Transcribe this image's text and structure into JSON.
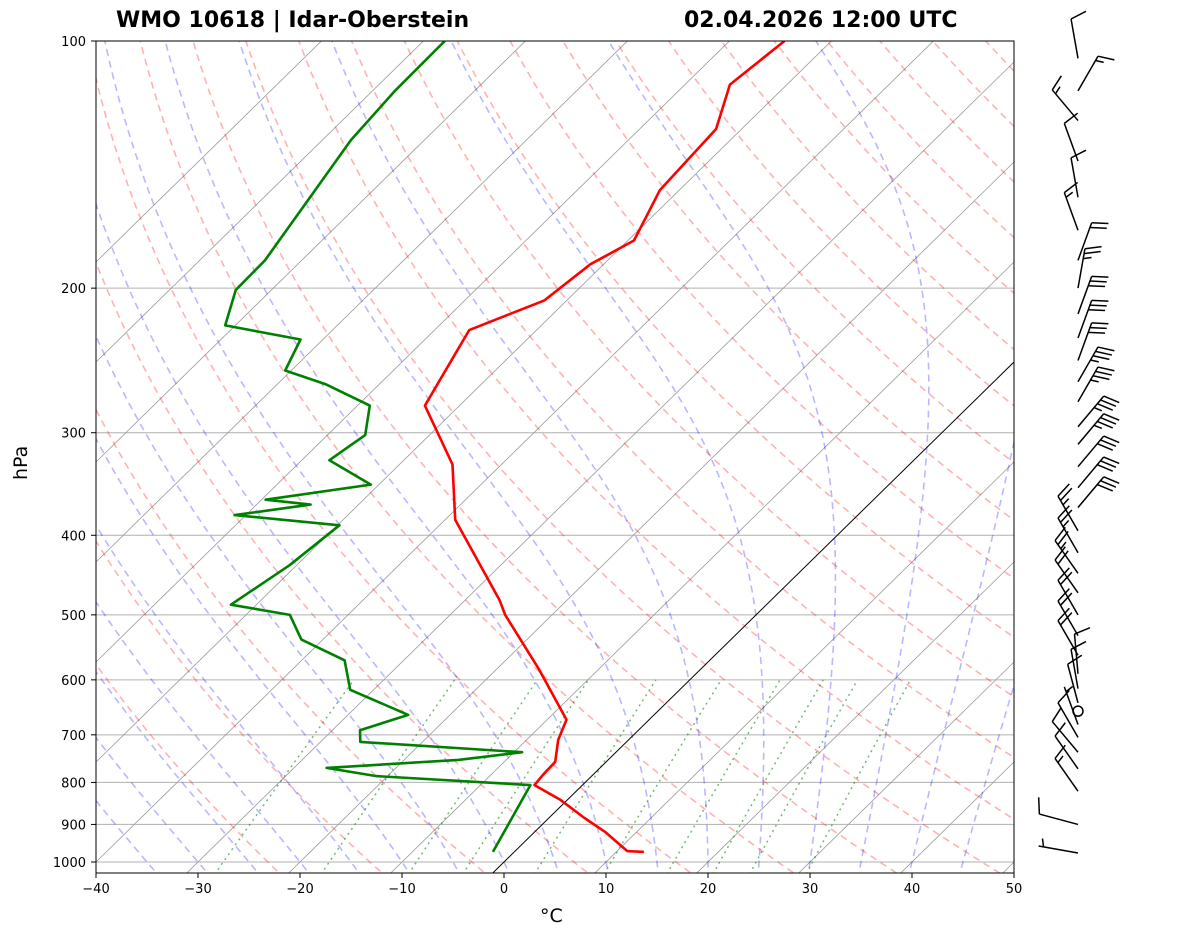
{
  "chart_data": {
    "type": "line",
    "subtype": "skew-t log-p",
    "title_left": "WMO 10618 | Idar-Oberstein",
    "title_right": "02.04.2026 12:00 UTC",
    "xlabel": "°C",
    "ylabel": "hPa",
    "xlim": [
      -40,
      50
    ],
    "ylim": [
      1031,
      100
    ],
    "xticks": [
      -40,
      -30,
      -20,
      -10,
      0,
      10,
      20,
      30,
      40,
      50
    ],
    "yticks": [
      100,
      200,
      300,
      400,
      500,
      600,
      700,
      800,
      900,
      1000
    ],
    "grid": true,
    "series": [
      {
        "name": "Temperature",
        "color": "#ff0000",
        "pressure": [
          972,
          970,
          919,
          884,
          840,
          806,
          783,
          755,
          710,
          671,
          584,
          500,
          480,
          383,
          328,
          278,
          225,
          207,
          187,
          175,
          152,
          128,
          113,
          100
        ],
        "temperature": [
          12.7,
          11.0,
          6.9,
          3.5,
          -0.7,
          -4.7,
          -4.9,
          -5.0,
          -6.9,
          -8.1,
          -15.7,
          -24.6,
          -26.6,
          -39.0,
          -44.8,
          -53.4,
          -56.6,
          -52.2,
          -51.3,
          -49.4,
          -51.9,
          -52.5,
          -55.6,
          -54.6
        ]
      },
      {
        "name": "Dewpoint",
        "color": "#008000",
        "pressure": [
          972,
          806,
          786,
          768,
          751,
          735,
          714,
          691,
          662,
          617,
          568,
          536,
          500,
          486,
          435,
          389,
          378,
          367,
          362,
          347,
          324,
          302,
          278,
          262,
          252,
          231,
          222,
          201,
          185,
          132,
          115,
          100
        ],
        "temperature": [
          -2.1,
          -5.1,
          -21.1,
          -26.8,
          -14.7,
          -9.2,
          -26.1,
          -27.3,
          -24.1,
          -32.3,
          -35.8,
          -42.1,
          -45.7,
          -52.5,
          -50.7,
          -49.8,
          -61.1,
          -54.7,
          -59.6,
          -50.8,
          -57.3,
          -56.3,
          -58.8,
          -65.2,
          -70.6,
          -72.2,
          -81.0,
          -83.5,
          -83.6,
          -87.2,
          -87.8,
          -87.9
        ]
      }
    ],
    "highlighted_isotherm_c": 0,
    "isotherms_c": [
      -100,
      -90,
      -80,
      -70,
      -60,
      -50,
      -40,
      -30,
      -20,
      -10,
      10,
      20,
      30,
      40,
      50
    ],
    "dry_adiabats_k": [
      250,
      260,
      270,
      280,
      290,
      300,
      310,
      320,
      330,
      340,
      350,
      360,
      370,
      380,
      390,
      400,
      410,
      420,
      430,
      440,
      450,
      460,
      470,
      480,
      490,
      500
    ],
    "moist_adiabats_c": [
      -35,
      -30,
      -25,
      -20,
      -15,
      -10,
      -5,
      0,
      5,
      10,
      15,
      20,
      25,
      30,
      35,
      40,
      45
    ],
    "mixing_ratio_lines_gkg": [
      0.4,
      1,
      2,
      3,
      5,
      8,
      12,
      16,
      20,
      28
    ],
    "wind_barbs": [
      {
        "p": 975,
        "dir": 280,
        "kt": 5
      },
      {
        "p": 900,
        "dir": 285,
        "kt": 10
      },
      {
        "p": 820,
        "dir": 325,
        "kt": 15
      },
      {
        "p": 770,
        "dir": 325,
        "kt": 10
      },
      {
        "p": 735,
        "dir": 320,
        "kt": 10
      },
      {
        "p": 705,
        "dir": 330,
        "kt": 10
      },
      {
        "p": 680,
        "dir": 340,
        "kt": 5
      },
      {
        "p": 655,
        "dir": 0,
        "kt": 0
      },
      {
        "p": 640,
        "dir": 345,
        "kt": 10
      },
      {
        "p": 615,
        "dir": 350,
        "kt": 10
      },
      {
        "p": 590,
        "dir": 355,
        "kt": 10
      },
      {
        "p": 560,
        "dir": 330,
        "kt": 20
      },
      {
        "p": 530,
        "dir": 330,
        "kt": 20
      },
      {
        "p": 500,
        "dir": 330,
        "kt": 20
      },
      {
        "p": 470,
        "dir": 325,
        "kt": 20
      },
      {
        "p": 445,
        "dir": 325,
        "kt": 25
      },
      {
        "p": 420,
        "dir": 330,
        "kt": 25
      },
      {
        "p": 395,
        "dir": 330,
        "kt": 25
      },
      {
        "p": 370,
        "dir": 40,
        "kt": 30
      },
      {
        "p": 350,
        "dir": 40,
        "kt": 30
      },
      {
        "p": 330,
        "dir": 40,
        "kt": 30
      },
      {
        "p": 310,
        "dir": 40,
        "kt": 35
      },
      {
        "p": 295,
        "dir": 40,
        "kt": 35
      },
      {
        "p": 275,
        "dir": 30,
        "kt": 35
      },
      {
        "p": 260,
        "dir": 30,
        "kt": 35
      },
      {
        "p": 245,
        "dir": 20,
        "kt": 30
      },
      {
        "p": 230,
        "dir": 20,
        "kt": 30
      },
      {
        "p": 215,
        "dir": 20,
        "kt": 30
      },
      {
        "p": 200,
        "dir": 10,
        "kt": 25
      },
      {
        "p": 185,
        "dir": 20,
        "kt": 20
      },
      {
        "p": 170,
        "dir": 340,
        "kt": 15
      },
      {
        "p": 155,
        "dir": 350,
        "kt": 10
      },
      {
        "p": 140,
        "dir": 340,
        "kt": 10
      },
      {
        "p": 125,
        "dir": 320,
        "kt": 15
      },
      {
        "p": 115,
        "dir": 30,
        "kt": 15
      },
      {
        "p": 105,
        "dir": 350,
        "kt": 10
      }
    ]
  }
}
